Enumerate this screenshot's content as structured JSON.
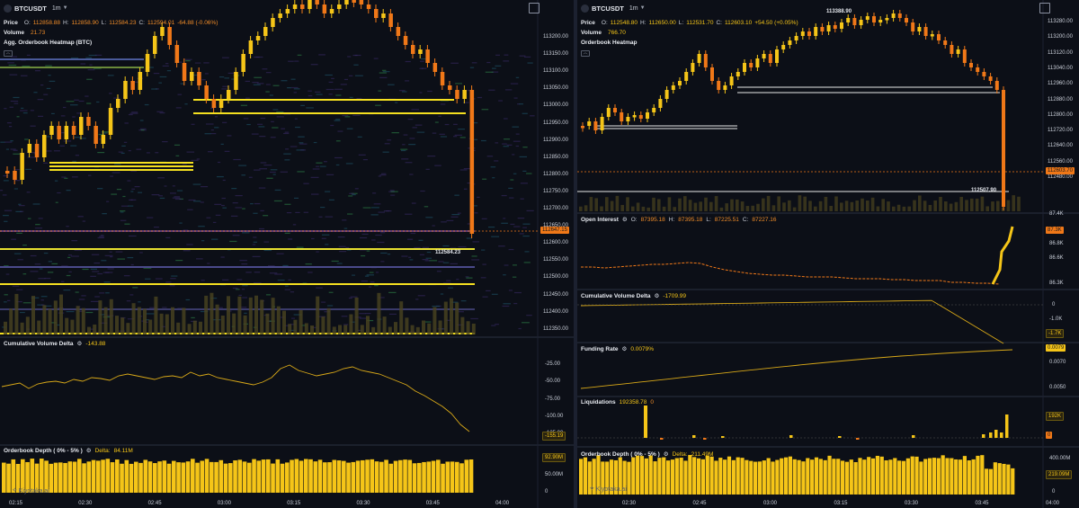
{
  "left": {
    "symbol": "BTCUSDT",
    "timeframe": "1m",
    "price": {
      "label": "Price",
      "o_label": "O:",
      "o": "112858.88",
      "h_label": "H:",
      "h": "112858.90",
      "l_label": "L:",
      "l": "112584.23",
      "c_label": "C:",
      "c": "112594.01",
      "chg": "-64.88 (-0.06%)"
    },
    "volume": {
      "label": "Volume",
      "value": "21.73"
    },
    "heatmap_label": "Agg. Orderbook Heatmap (BTC)",
    "price_ticks": [
      "113200.00",
      "113150.00",
      "113100.00",
      "113050.00",
      "113000.00",
      "112950.00",
      "112900.00",
      "112850.00",
      "112800.00",
      "112750.00",
      "112700.00",
      "112650.00",
      "112600.00",
      "112550.00",
      "112500.00",
      "112450.00",
      "112400.00",
      "112350.00"
    ],
    "last_price_tag": "112647.15",
    "low_label": "112584.23",
    "cvd": {
      "title": "Cumulative Volume Delta",
      "value": "-143.88",
      "ticks": [
        "-25.00",
        "-50.00",
        "-75.00",
        "-100.00",
        "-125.00"
      ],
      "tag": "-155.19"
    },
    "depth": {
      "title": "Orderbook Depth ( 0% - 5% )",
      "delta_label": "Delta:",
      "delta": "84.11M",
      "tag": "92.90M",
      "ticks": [
        "50.00M",
        "0"
      ]
    },
    "time_ticks": [
      "02:15",
      "02:30",
      "02:45",
      "03:00",
      "03:15",
      "03:30",
      "03:45",
      "04:00"
    ],
    "watermark": "Kiyotaka.ai"
  },
  "right": {
    "symbol": "BTCUSDT",
    "timeframe": "1m",
    "price": {
      "label": "Price",
      "o_label": "O:",
      "o": "112548.80",
      "h_label": "H:",
      "h": "112650.00",
      "l_label": "L:",
      "l": "112531.70",
      "c_label": "C:",
      "c": "112603.10",
      "chg": "+54.50 (+0.05%)"
    },
    "volume": {
      "label": "Volume",
      "value": "766.70"
    },
    "heatmap_label": "Orderbook Heatmap",
    "price_ticks": [
      "113280.00",
      "113200.00",
      "113120.00",
      "113040.00",
      "112960.00",
      "112880.00",
      "112800.00",
      "112720.00",
      "112640.00",
      "112560.00",
      "112480.00"
    ],
    "high_label": "113388.90",
    "last_price_tag": "112603.70",
    "low_label": "112507.90",
    "oi": {
      "title": "Open Interest",
      "o_label": "O:",
      "o": "87395.18",
      "h_label": "H:",
      "h": "87395.18",
      "l_label": "L:",
      "l": "87225.51",
      "c_label": "C:",
      "c": "87227.16",
      "tag": "87.3K",
      "ticks": [
        "87.4K",
        "86.8K",
        "86.6K",
        "86.3K"
      ]
    },
    "cvd": {
      "title": "Cumulative Volume Delta",
      "value": "-1709.99",
      "ticks": [
        "0",
        "-1.0K"
      ],
      "tag": "-1.7K"
    },
    "funding": {
      "title": "Funding Rate",
      "value": "0.0079%",
      "tag": "0.0079",
      "ticks": [
        "0.0070",
        "0.0050"
      ]
    },
    "liq": {
      "title": "Liquidations",
      "value": "192358.78",
      "suffix": "0",
      "tag_top": "192K",
      "tag_zero": "0"
    },
    "depth": {
      "title": "Orderbook Depth ( 0% - 5% )",
      "delta_label": "Delta:",
      "delta": "211.49M",
      "tag": "219.09M",
      "ticks": [
        "400.00M",
        "0"
      ]
    },
    "time_ticks": [
      "02:30",
      "02:45",
      "03:00",
      "03:15",
      "03:30",
      "03:45",
      "04:00"
    ],
    "watermark": "Kiyotaka.ai"
  },
  "colors": {
    "bg": "#0c0f17",
    "candle_up": "#f5c518",
    "candle_down": "#f07818",
    "orange": "#f08c28",
    "yellow": "#f5c518",
    "grid": "#1a1f2c",
    "white": "#e8e8e8"
  }
}
